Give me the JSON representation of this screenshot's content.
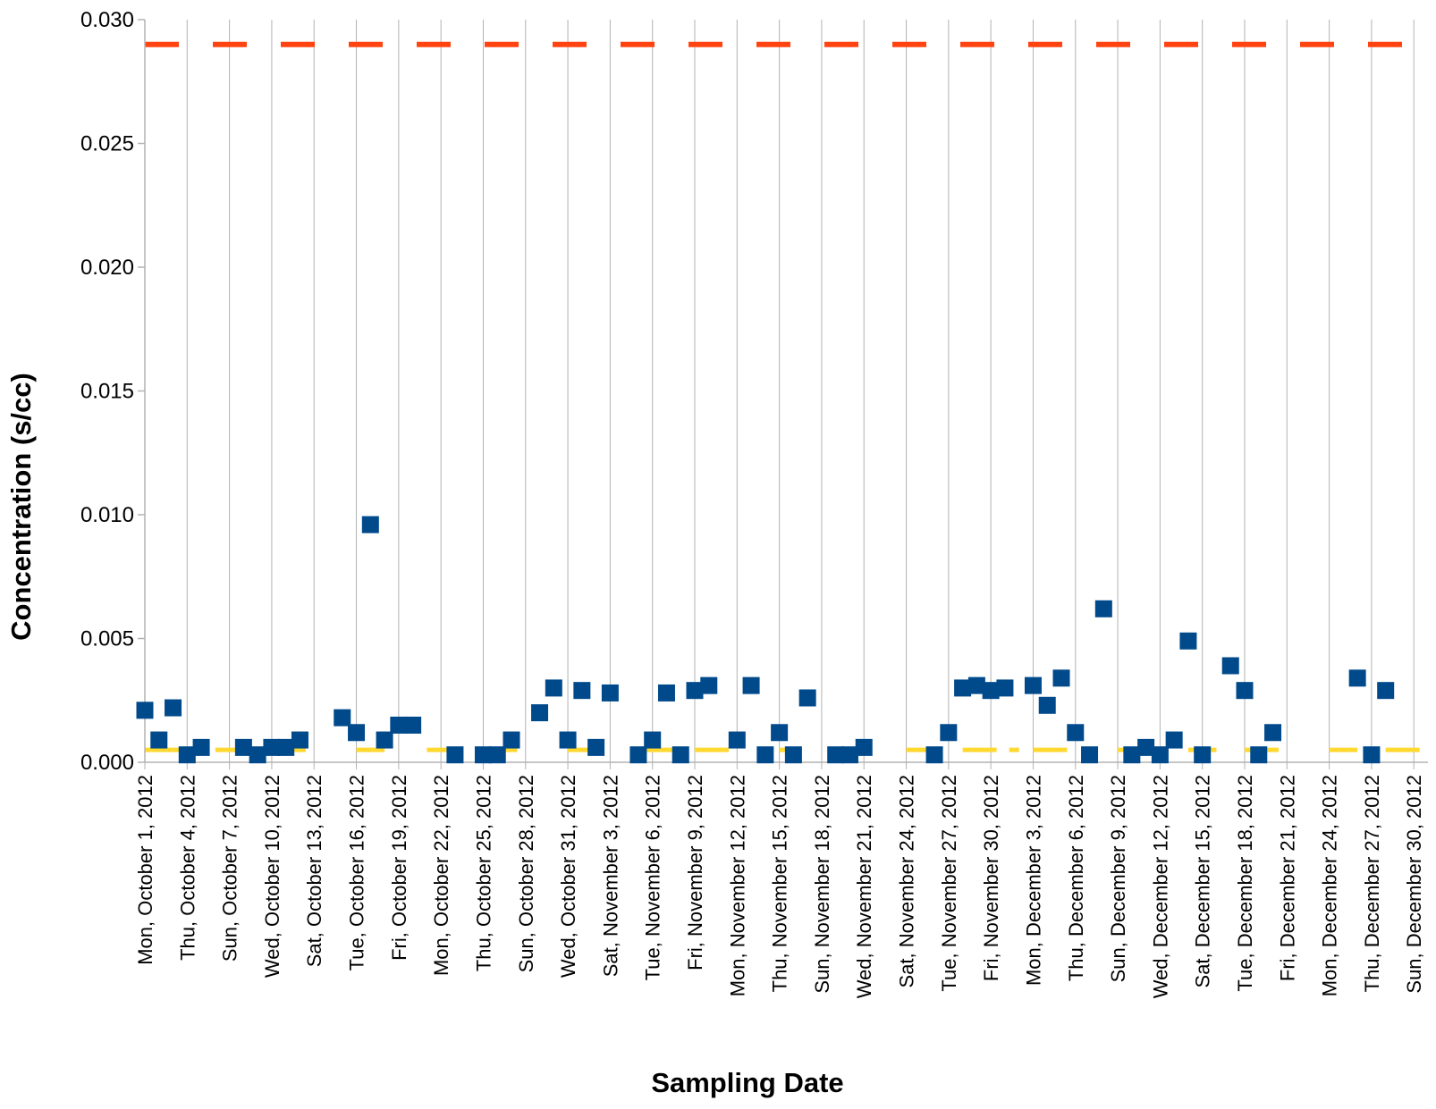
{
  "chart_data": {
    "type": "scatter",
    "title": "",
    "xlabel": "Sampling Date",
    "ylabel": "Concentration (s/cc)",
    "xlim": [
      "2012-10-01",
      "2012-12-31"
    ],
    "ylim": [
      0,
      0.03
    ],
    "y_ticks": [
      "0.000",
      "0.005",
      "0.010",
      "0.015",
      "0.020",
      "0.025",
      "0.030"
    ],
    "x_ticks": [
      "Mon, October 1, 2012",
      "Thu, October 4, 2012",
      "Sun, October 7, 2012",
      "Wed, October 10, 2012",
      "Sat, October 13, 2012",
      "Tue, October 16, 2012",
      "Fri, October 19, 2012",
      "Mon, October 22, 2012",
      "Thu, October 25, 2012",
      "Sun, October 28, 2012",
      "Wed, October 31, 2012",
      "Sat, November 3, 2012",
      "Tue, November 6, 2012",
      "Fri, November 9, 2012",
      "Mon, November 12, 2012",
      "Thu, November 15, 2012",
      "Sun, November 18, 2012",
      "Wed, November 21, 2012",
      "Sat, November 24, 2012",
      "Tue, November 27, 2012",
      "Fri, November 30, 2012",
      "Mon, December 3, 2012",
      "Thu, December 6, 2012",
      "Sun, December 9, 2012",
      "Wed, December 12, 2012",
      "Sat, December 15, 2012",
      "Tue, December 18, 2012",
      "Fri, December 21, 2012",
      "Mon, December 24, 2012",
      "Thu, December 27, 2012",
      "Sun, December 30, 2012"
    ],
    "grid": "vertical lines at ticks",
    "legend": "none",
    "colors": {
      "points": "#004a8c",
      "upper_limit": "#ff4412",
      "lower_limit": "#ffd830",
      "grid": "#b3b3b3",
      "axis": "#b3b3b3"
    },
    "reference_lines": [
      {
        "value": 0.029,
        "color": "#ff4412",
        "style": "dashed"
      },
      {
        "value": 0.0005,
        "color": "#ffd830",
        "style": "dashed",
        "segments": [
          [
            "2012-10-01",
            "2012-10-05"
          ],
          [
            "2012-10-06",
            "2012-10-08"
          ],
          [
            "2012-10-10",
            "2012-10-13"
          ],
          [
            "2012-10-16",
            "2012-10-18"
          ],
          [
            "2012-10-21",
            "2012-10-23"
          ],
          [
            "2012-10-25",
            "2012-10-28"
          ],
          [
            "2012-10-31",
            "2012-11-02"
          ],
          [
            "2012-11-05",
            "2012-11-08"
          ],
          [
            "2012-11-09",
            "2012-11-12"
          ],
          [
            "2012-11-15",
            "2012-11-16"
          ],
          [
            "2012-11-24",
            "2012-11-27"
          ],
          [
            "2012-11-28",
            "2012-12-02"
          ],
          [
            "2012-12-03",
            "2012-12-06"
          ],
          [
            "2012-12-09",
            "2012-12-11"
          ],
          [
            "2012-12-14",
            "2012-12-16"
          ],
          [
            "2012-12-18",
            "2012-12-21"
          ],
          [
            "2012-12-24",
            "2012-12-26"
          ],
          [
            "2012-12-28",
            "2012-12-31"
          ]
        ]
      }
    ],
    "points": [
      {
        "x": "2012-10-01",
        "y": 0.0021
      },
      {
        "x": "2012-10-02",
        "y": 0.0009
      },
      {
        "x": "2012-10-03",
        "y": 0.0022
      },
      {
        "x": "2012-10-04",
        "y": 0.0003
      },
      {
        "x": "2012-10-05",
        "y": 0.0006
      },
      {
        "x": "2012-10-08",
        "y": 0.0006
      },
      {
        "x": "2012-10-09",
        "y": 0.0003
      },
      {
        "x": "2012-10-10",
        "y": 0.0006
      },
      {
        "x": "2012-10-11",
        "y": 0.0006
      },
      {
        "x": "2012-10-12",
        "y": 0.0009
      },
      {
        "x": "2012-10-15",
        "y": 0.0018
      },
      {
        "x": "2012-10-16",
        "y": 0.0012
      },
      {
        "x": "2012-10-17",
        "y": 0.0096
      },
      {
        "x": "2012-10-18",
        "y": 0.0009
      },
      {
        "x": "2012-10-19",
        "y": 0.0015
      },
      {
        "x": "2012-10-20",
        "y": 0.0015
      },
      {
        "x": "2012-10-23",
        "y": 0.0003
      },
      {
        "x": "2012-10-25",
        "y": 0.0003
      },
      {
        "x": "2012-10-26",
        "y": 0.0003
      },
      {
        "x": "2012-10-27",
        "y": 0.0009
      },
      {
        "x": "2012-10-29",
        "y": 0.002
      },
      {
        "x": "2012-10-30",
        "y": 0.003
      },
      {
        "x": "2012-10-31",
        "y": 0.0009
      },
      {
        "x": "2012-11-01",
        "y": 0.0029
      },
      {
        "x": "2012-11-02",
        "y": 0.0006
      },
      {
        "x": "2012-11-03",
        "y": 0.0028
      },
      {
        "x": "2012-11-05",
        "y": 0.0003
      },
      {
        "x": "2012-11-06",
        "y": 0.0009
      },
      {
        "x": "2012-11-07",
        "y": 0.0028
      },
      {
        "x": "2012-11-08",
        "y": 0.0003
      },
      {
        "x": "2012-11-09",
        "y": 0.0029
      },
      {
        "x": "2012-11-10",
        "y": 0.0031
      },
      {
        "x": "2012-11-12",
        "y": 0.0009
      },
      {
        "x": "2012-11-13",
        "y": 0.0031
      },
      {
        "x": "2012-11-14",
        "y": 0.0003
      },
      {
        "x": "2012-11-15",
        "y": 0.0012
      },
      {
        "x": "2012-11-16",
        "y": 0.0003
      },
      {
        "x": "2012-11-17",
        "y": 0.0026
      },
      {
        "x": "2012-11-19",
        "y": 0.0003
      },
      {
        "x": "2012-11-20",
        "y": 0.0003
      },
      {
        "x": "2012-11-21",
        "y": 0.0006
      },
      {
        "x": "2012-11-26",
        "y": 0.0003
      },
      {
        "x": "2012-11-27",
        "y": 0.0012
      },
      {
        "x": "2012-11-28",
        "y": 0.003
      },
      {
        "x": "2012-11-29",
        "y": 0.0031
      },
      {
        "x": "2012-11-30",
        "y": 0.0029
      },
      {
        "x": "2012-12-01",
        "y": 0.003
      },
      {
        "x": "2012-12-03",
        "y": 0.0031
      },
      {
        "x": "2012-12-04",
        "y": 0.0023
      },
      {
        "x": "2012-12-05",
        "y": 0.0034
      },
      {
        "x": "2012-12-06",
        "y": 0.0012
      },
      {
        "x": "2012-12-07",
        "y": 0.0003
      },
      {
        "x": "2012-12-08",
        "y": 0.0062
      },
      {
        "x": "2012-12-10",
        "y": 0.0003
      },
      {
        "x": "2012-12-11",
        "y": 0.0006
      },
      {
        "x": "2012-12-12",
        "y": 0.0003
      },
      {
        "x": "2012-12-13",
        "y": 0.0009
      },
      {
        "x": "2012-12-14",
        "y": 0.0049
      },
      {
        "x": "2012-12-15",
        "y": 0.0003
      },
      {
        "x": "2012-12-17",
        "y": 0.0039
      },
      {
        "x": "2012-12-18",
        "y": 0.0029
      },
      {
        "x": "2012-12-19",
        "y": 0.0003
      },
      {
        "x": "2012-12-20",
        "y": 0.0012
      },
      {
        "x": "2012-12-26",
        "y": 0.0034
      },
      {
        "x": "2012-12-27",
        "y": 0.0003
      },
      {
        "x": "2012-12-28",
        "y": 0.0029
      }
    ]
  }
}
